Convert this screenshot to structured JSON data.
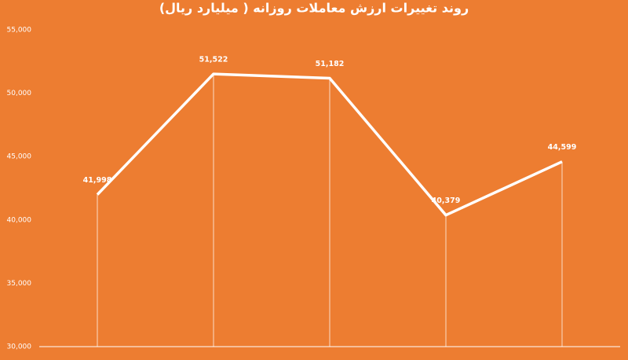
{
  "chart_data": {
    "type": "line",
    "title": "روند تغییرات ارزش معاملات روزانه ( میلیارد ریال)",
    "categories": [
      null,
      null,
      null,
      null,
      null
    ],
    "series": [
      {
        "name": null,
        "color": "#ffffff",
        "values": [
          41998,
          51522,
          51182,
          40379,
          44599
        ],
        "value_labels": [
          "41,998",
          "51,522",
          "51,182",
          "40,379",
          "44,599"
        ]
      }
    ],
    "ylim": [
      30000,
      55000
    ],
    "yticks": [
      {
        "value": 30000,
        "label": "30,000"
      },
      {
        "value": 35000,
        "label": "35,000"
      },
      {
        "value": 40000,
        "label": "40,000"
      },
      {
        "value": 45000,
        "label": "45,000"
      },
      {
        "value": 50000,
        "label": "50,000"
      },
      {
        "value": 55000,
        "label": "55,000"
      }
    ],
    "grid": false,
    "drop_lines": true
  }
}
